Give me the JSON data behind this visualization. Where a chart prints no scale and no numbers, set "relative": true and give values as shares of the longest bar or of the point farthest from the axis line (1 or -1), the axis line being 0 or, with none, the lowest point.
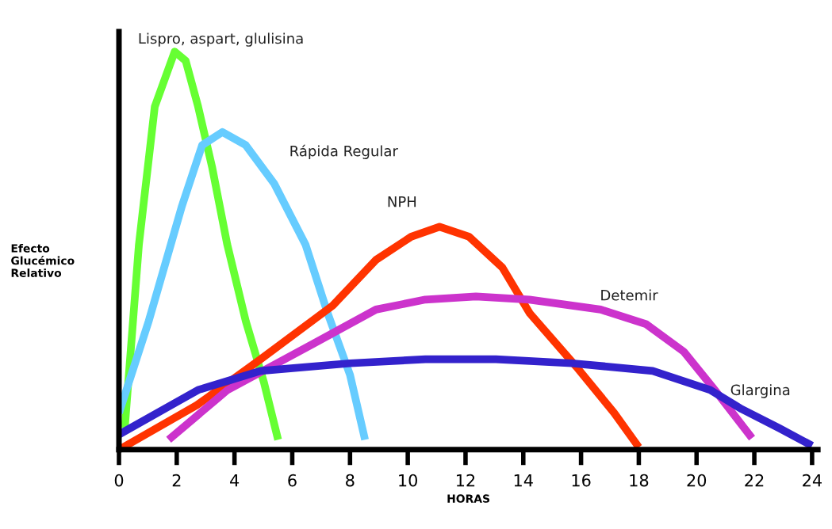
{
  "chart_data": {
    "type": "line",
    "relative": true,
    "xlabel": "HORAS",
    "ylabel": "Efecto\nGlucémico\nRelativo",
    "xlim": [
      0,
      24.2
    ],
    "xticks": [
      0,
      2,
      4,
      6,
      8,
      10,
      12,
      14,
      16,
      18,
      20,
      22,
      24
    ],
    "grid": false,
    "legend": false,
    "marker": "none",
    "line_style": "solid",
    "series": [
      {
        "name": "Lispro, aspart, glulisina",
        "color": "#66ff33",
        "x": [
          0.2,
          0.69,
          1.24,
          1.93,
          2.31,
          2.74,
          3.23,
          3.75,
          4.39,
          5.02,
          5.51
        ],
        "values": [
          0.054,
          0.515,
          0.862,
          1.0,
          0.977,
          0.862,
          0.708,
          0.515,
          0.323,
          0.169,
          0.025
        ]
      },
      {
        "name": "Rápida Regular",
        "color": "#66ccff",
        "x": [
          0,
          1.03,
          2.18,
          2.88,
          3.58,
          4.39,
          5.37,
          6.46,
          7.23,
          8,
          8.52
        ],
        "values": [
          0.092,
          0.323,
          0.612,
          0.765,
          0.798,
          0.765,
          0.669,
          0.515,
          0.342,
          0.188,
          0.025
        ]
      },
      {
        "name": "NPH",
        "color": "#ff3300",
        "x": [
          0,
          2.7,
          4.9,
          7.4,
          8.9,
          10.12,
          11.1,
          12.12,
          13.27,
          14.23,
          15.84,
          17.15,
          18
        ],
        "values": [
          0,
          0.112,
          0.227,
          0.362,
          0.477,
          0.535,
          0.56,
          0.535,
          0.458,
          0.342,
          0.208,
          0.092,
          0.006
        ]
      },
      {
        "name": "Detemir",
        "color": "#cc33cc",
        "x": [
          1.72,
          3.76,
          6.7,
          8.9,
          10.61,
          12.36,
          14.21,
          16.68,
          18.26,
          19.56,
          20.63,
          21.92
        ],
        "values": [
          0.025,
          0.15,
          0.265,
          0.352,
          0.377,
          0.385,
          0.377,
          0.352,
          0.315,
          0.246,
          0.15,
          0.029
        ]
      },
      {
        "name": "Glargina",
        "color": "#3322cc",
        "x": [
          0,
          2.74,
          4.9,
          8,
          10.61,
          13.05,
          15.69,
          18.48,
          20.47,
          21.56,
          22.86,
          24
        ],
        "values": [
          0.038,
          0.15,
          0.198,
          0.217,
          0.227,
          0.227,
          0.217,
          0.198,
          0.15,
          0.102,
          0.054,
          0.01
        ]
      }
    ]
  }
}
